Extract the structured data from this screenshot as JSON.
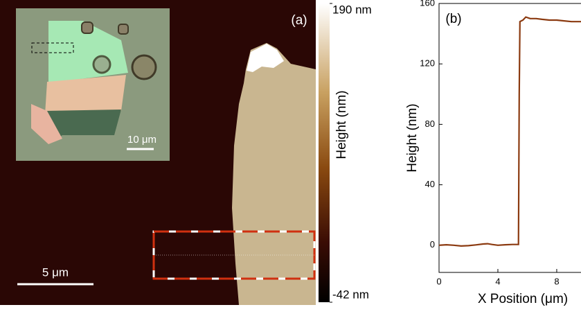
{
  "chart_data": [
    {
      "type": "image",
      "panel_label": "(a)",
      "scale_bar": "5 μm",
      "inset_scale_bar": "10 μm",
      "colorbar": {
        "label": "Height (nm)",
        "lim": [
          -42,
          190
        ],
        "ticks": [
          {
            "value": 190,
            "label": "190 nm"
          },
          {
            "value": -42,
            "label": "-42 nm"
          }
        ]
      }
    },
    {
      "type": "line",
      "panel_label": "(b)",
      "x_label": "X Position (μm)",
      "y_label": "Height (nm)",
      "x": [
        0,
        0.5,
        1,
        1.5,
        2,
        2.5,
        3,
        3.3,
        3.6,
        4,
        4.5,
        5,
        5.4,
        5.45,
        5.5,
        5.7,
        5.9,
        6.2,
        6.6,
        7,
        7.5,
        8,
        8.5,
        9,
        9.5,
        9.65
      ],
      "values": [
        0,
        0.3,
        0,
        -0.5,
        -0.3,
        0.2,
        0.8,
        1.0,
        0.5,
        0,
        0.3,
        0.5,
        0.5,
        100,
        148,
        149,
        151,
        150,
        150,
        149.5,
        149,
        149,
        148.5,
        148,
        148,
        148
      ],
      "color": "#8b3a10",
      "xlim": [
        0,
        9.65
      ],
      "ylim": [
        -18,
        160
      ],
      "xticks": [
        0,
        4,
        8
      ],
      "yticks": [
        0,
        40,
        80,
        120,
        160
      ]
    }
  ]
}
